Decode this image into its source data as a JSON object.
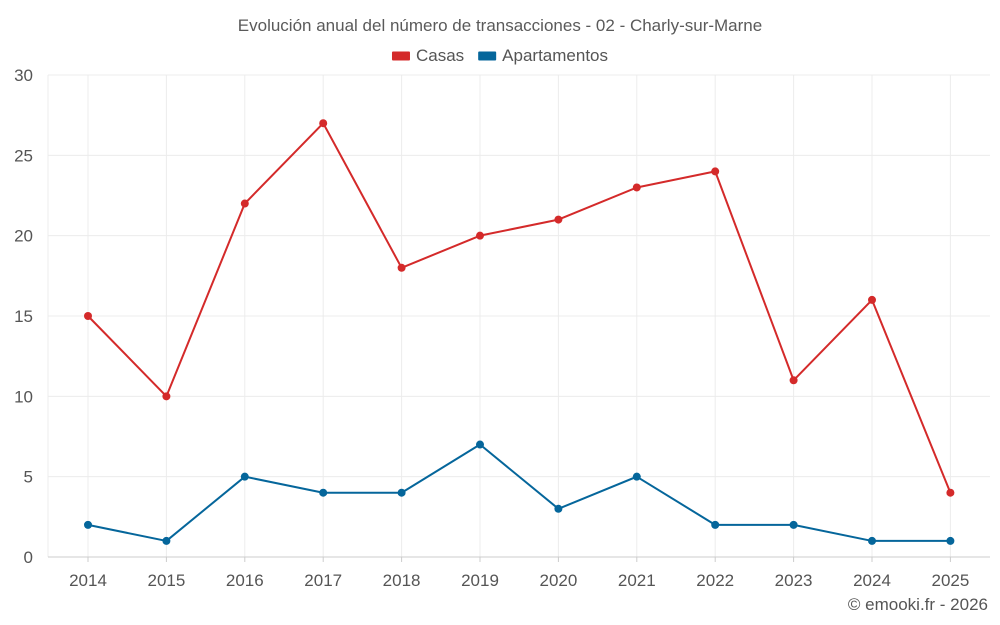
{
  "chart_data": {
    "type": "line",
    "title": "Evolución anual del número de transacciones - 02 - Charly-sur-Marne",
    "categories": [
      "2014",
      "2015",
      "2016",
      "2017",
      "2018",
      "2019",
      "2020",
      "2021",
      "2022",
      "2023",
      "2024",
      "2025"
    ],
    "series": [
      {
        "name": "Casas",
        "color": "#d42a2a",
        "values": [
          15,
          10,
          22,
          27,
          18,
          20,
          21,
          23,
          24,
          11,
          16,
          4
        ]
      },
      {
        "name": "Apartamentos",
        "color": "#05669b",
        "values": [
          2,
          1,
          5,
          4,
          4,
          7,
          3,
          5,
          2,
          2,
          1,
          1
        ]
      }
    ],
    "ylim": [
      0,
      30
    ],
    "yticks": [
      0,
      5,
      10,
      15,
      20,
      25,
      30
    ],
    "xlabel": "",
    "ylabel": "",
    "grid": true,
    "legend": "top-center"
  },
  "credit": "© emooki.fr - 2026"
}
